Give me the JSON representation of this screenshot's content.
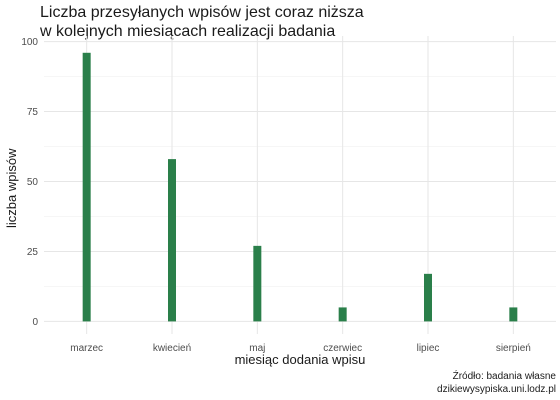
{
  "title_line1": "Liczba przesyłanych wpisów jest coraz niższa",
  "title_line2": "w kolejnych miesiącach realizacji badania",
  "caption_line1": "Źródło: badania własne",
  "caption_line2": "dzikiewysypiska.uni.lodz.pl",
  "colors": {
    "bar": "#2a7f4a",
    "grid_major": "#e6e6e6",
    "grid_minor": "#f2f2f2"
  },
  "chart_data": {
    "type": "bar",
    "title": "Liczba przesyłanych wpisów jest coraz niższa w kolejnych miesiącach realizacji badania",
    "xlabel": "miesiąc dodania wpisu",
    "ylabel": "liczba wpisów",
    "categories": [
      "marzec",
      "kwiecień",
      "maj",
      "czerwiec",
      "lipiec",
      "sierpień"
    ],
    "values": [
      96,
      58,
      27,
      5,
      17,
      5
    ],
    "ylim": [
      0,
      100
    ],
    "yticks": [
      0,
      25,
      50,
      75,
      100
    ],
    "grid": true,
    "legend": "none"
  }
}
